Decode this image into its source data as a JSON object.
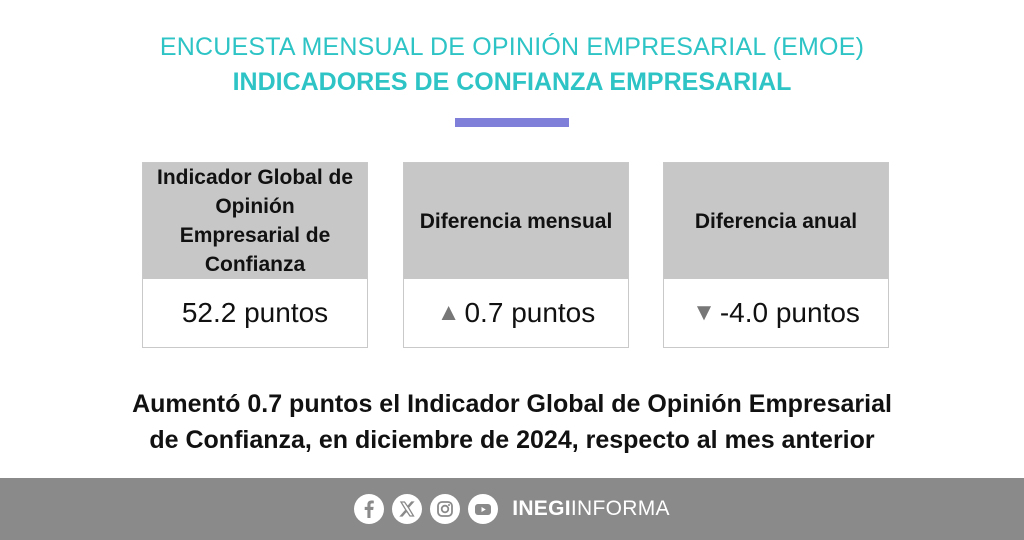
{
  "header": {
    "title_line1": "ENCUESTA MENSUAL DE OPINIÓN EMPRESARIAL (EMOE)",
    "title_line2": "INDICADORES DE CONFIANZA EMPRESARIAL",
    "accent_color": "#2ec4c6",
    "divider_color": "#7f7fd9"
  },
  "cards": [
    {
      "title": "Indicador Global de Opinión Empresarial de Confianza",
      "arrow": "",
      "value": "52.2 puntos"
    },
    {
      "title": "Diferencia mensual",
      "arrow": "▲",
      "value": "0.7 puntos"
    },
    {
      "title": "Diferencia anual",
      "arrow": "▼",
      "value": "-4.0 puntos"
    }
  ],
  "statement": {
    "line1": "Aumentó 0.7 puntos el Indicador Global de Opinión Empresarial",
    "line2": "de Confianza, en diciembre de 2024, respecto al mes anterior"
  },
  "footer": {
    "social_icons": [
      "facebook-icon",
      "x-icon",
      "instagram-icon",
      "youtube-icon"
    ],
    "brand_bold": "INEGI",
    "brand_rest": "INFORMA",
    "background_color": "#8a8a8a"
  }
}
